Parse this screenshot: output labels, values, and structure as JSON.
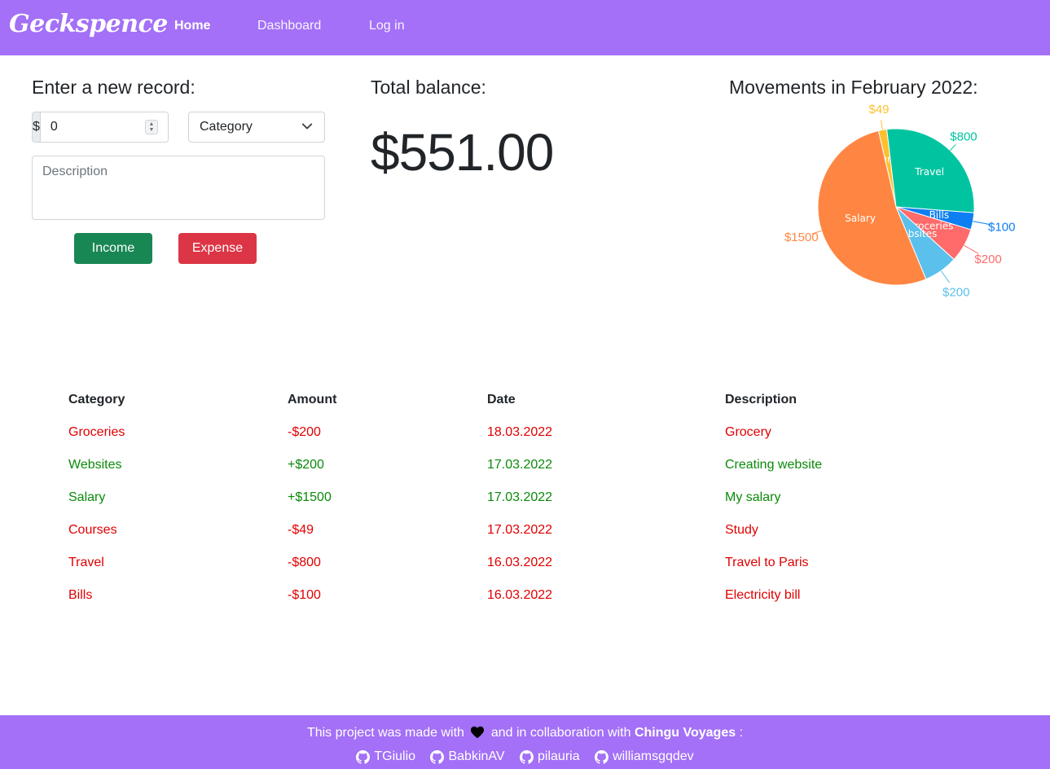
{
  "nav": {
    "brand": "Geckspence",
    "links": [
      {
        "label": "Home",
        "active": true
      },
      {
        "label": "Dashboard",
        "active": false
      },
      {
        "label": "Log in",
        "active": false
      }
    ]
  },
  "form": {
    "title": "Enter a new record:",
    "currency_symbol": "$",
    "amount_value": "0",
    "category_selected": "Category",
    "description_placeholder": "Description",
    "income_label": "Income",
    "expense_label": "Expense"
  },
  "balance": {
    "title": "Total balance:",
    "value": "$551.00"
  },
  "chart": {
    "title": "Movements in February 2022:"
  },
  "chart_data": {
    "type": "pie",
    "title": "Movements in February 2022:",
    "categories": [
      "Courses",
      "Travel",
      "Bills",
      "Groceries",
      "Websites",
      "Salary"
    ],
    "values": [
      49,
      800,
      100,
      200,
      200,
      1500
    ],
    "value_labels": [
      "$49",
      "$800",
      "$100",
      "$200",
      "$200",
      "$1500"
    ],
    "colors": [
      "#ffc02e",
      "#00c4a0",
      "#0d7ff2",
      "#ff6a6a",
      "#5bc0eb",
      "#ff8642"
    ]
  },
  "table": {
    "headers": [
      "Category",
      "Amount",
      "Date",
      "Description"
    ],
    "rows": [
      {
        "category": "Groceries",
        "amount": "-$200",
        "date": "18.03.2022",
        "description": "Grocery",
        "type": "expense"
      },
      {
        "category": "Websites",
        "amount": "+$200",
        "date": "17.03.2022",
        "description": "Creating website",
        "type": "income"
      },
      {
        "category": "Salary",
        "amount": "+$1500",
        "date": "17.03.2022",
        "description": "My salary",
        "type": "income"
      },
      {
        "category": "Courses",
        "amount": "-$49",
        "date": "17.03.2022",
        "description": "Study",
        "type": "expense"
      },
      {
        "category": "Travel",
        "amount": "-$800",
        "date": "16.03.2022",
        "description": "Travel to Paris",
        "type": "expense"
      },
      {
        "category": "Bills",
        "amount": "-$100",
        "date": "16.03.2022",
        "description": "Electricity bill",
        "type": "expense"
      }
    ]
  },
  "footer": {
    "made_with": "This project was made with",
    "collab_text": "and in collaboration with",
    "org": "Chingu Voyages",
    "colon": ":",
    "contributors": [
      "TGiulio",
      "BabkinAV",
      "pilauria",
      "williamsgqdev"
    ]
  },
  "colors": {
    "primary": "#a370f7",
    "income": "#198754",
    "expense": "#dc3545",
    "expense_text": "#e00000",
    "income_text": "#0a8a0a"
  }
}
